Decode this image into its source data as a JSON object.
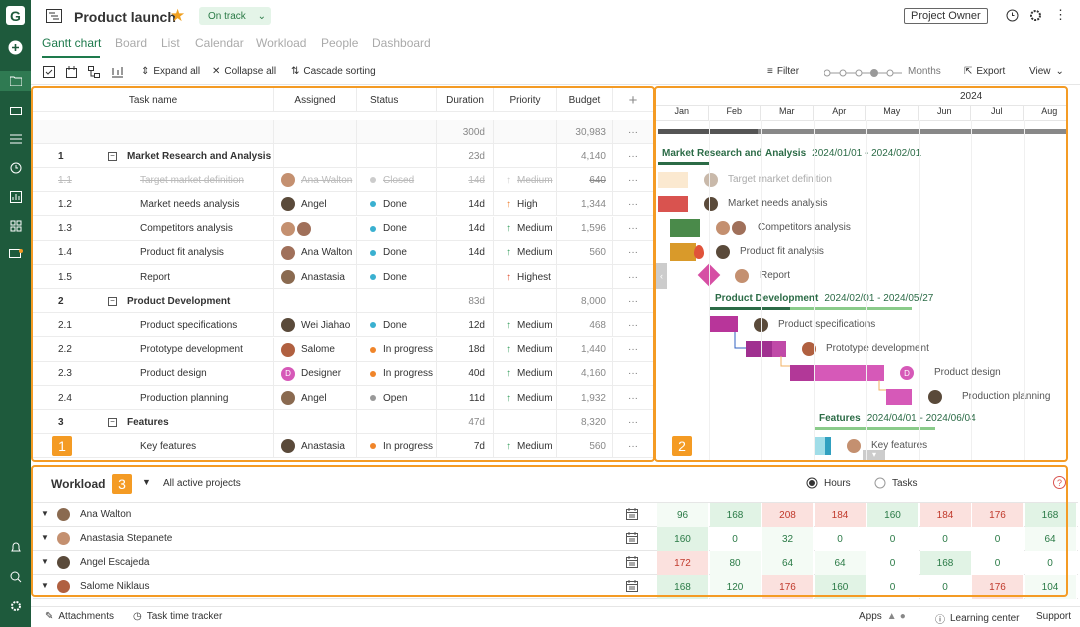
{
  "app": {
    "title": "Product launch",
    "status": "On track",
    "role_button": "Project Owner"
  },
  "tabs": [
    "Gantt chart",
    "Board",
    "List",
    "Calendar",
    "Workload",
    "People",
    "Dashboard"
  ],
  "toolbar": {
    "expand": "Expand all",
    "collapse": "Collapse all",
    "cascade": "Cascade sorting",
    "filter": "Filter",
    "zoom": "Months",
    "export": "Export",
    "view": "View"
  },
  "grid": {
    "headers": [
      "Task name",
      "Assigned",
      "Status",
      "Duration",
      "Priority",
      "Budget"
    ],
    "total": {
      "duration": "300d",
      "budget": "30,983"
    },
    "rows": [
      {
        "id": "1",
        "name": "Market Research and Analysis",
        "group": true,
        "duration": "23d",
        "budget": "4,140"
      },
      {
        "id": "1.1",
        "name": "Target market definition",
        "assigned": "Ana Walton",
        "status": "Closed",
        "duration": "14d",
        "priority": "Medium",
        "budget": "640",
        "dim": true
      },
      {
        "id": "1.2",
        "name": "Market needs analysis",
        "assigned": "Angel",
        "status": "Done",
        "duration": "14d",
        "priority": "High",
        "budget": "1,344"
      },
      {
        "id": "1.3",
        "name": "Competitors analysis",
        "assigned": "",
        "status": "Done",
        "duration": "14d",
        "priority": "Medium",
        "budget": "1,596",
        "two": true
      },
      {
        "id": "1.4",
        "name": "Product fit analysis",
        "assigned": "Ana Walton",
        "status": "Done",
        "duration": "14d",
        "priority": "Medium",
        "budget": "560"
      },
      {
        "id": "1.5",
        "name": "Report",
        "assigned": "Anastasia",
        "status": "Done",
        "duration": "",
        "priority": "Highest",
        "budget": ""
      },
      {
        "id": "2",
        "name": "Product Development",
        "group": true,
        "duration": "83d",
        "budget": "8,000"
      },
      {
        "id": "2.1",
        "name": "Product specifications",
        "assigned": "Wei Jiahao",
        "status": "Done",
        "duration": "12d",
        "priority": "Medium",
        "budget": "468"
      },
      {
        "id": "2.2",
        "name": "Prototype development",
        "assigned": "Salome",
        "status": "In progress",
        "duration": "18d",
        "priority": "Medium",
        "budget": "1,440"
      },
      {
        "id": "2.3",
        "name": "Product design",
        "assigned": "Designer",
        "status": "In progress",
        "duration": "40d",
        "priority": "Medium",
        "budget": "4,160",
        "letter": "D"
      },
      {
        "id": "2.4",
        "name": "Production planning",
        "assigned": "Angel",
        "status": "Open",
        "duration": "11d",
        "priority": "Medium",
        "budget": "1,932"
      },
      {
        "id": "3",
        "name": "Features",
        "group": true,
        "duration": "47d",
        "budget": "8,320"
      },
      {
        "id": "",
        "name": "Key features",
        "assigned": "Anastasia",
        "status": "In progress",
        "duration": "7d",
        "priority": "Medium",
        "budget": "560"
      }
    ]
  },
  "gantt": {
    "year": "2024",
    "months": [
      "Jan",
      "Feb",
      "Mar",
      "Apr",
      "May",
      "Jun",
      "Jul",
      "Aug"
    ],
    "groups": [
      {
        "name": "Market Research and Analysis",
        "dates": "2024/01/01 - 2024/02/01"
      },
      {
        "name": "Product Development",
        "dates": "2024/02/01 - 2024/05/27"
      },
      {
        "name": "Features",
        "dates": "2024/04/01 - 2024/06/04"
      }
    ],
    "labels": [
      "Target market definition",
      "Market needs analysis",
      "Competitors analysis",
      "Product fit analysis",
      "Report",
      "Product specifications",
      "Prototype development",
      "Product design",
      "Production planning",
      "Key features"
    ]
  },
  "workload": {
    "title": "Workload",
    "scope": "All active projects",
    "opt_hours": "Hours",
    "opt_tasks": "Tasks",
    "rows": [
      {
        "name": "Ana Walton",
        "values": [
          "96",
          "168",
          "208",
          "184",
          "160",
          "184",
          "176",
          "168"
        ]
      },
      {
        "name": "Anastasia Stepanete",
        "values": [
          "160",
          "0",
          "32",
          "0",
          "0",
          "0",
          "0",
          "64"
        ]
      },
      {
        "name": "Angel Escajeda",
        "values": [
          "172",
          "80",
          "64",
          "64",
          "0",
          "168",
          "0",
          "0"
        ]
      },
      {
        "name": "Salome Niklaus",
        "values": [
          "168",
          "120",
          "176",
          "160",
          "0",
          "0",
          "176",
          "104"
        ]
      }
    ]
  },
  "badges": [
    "1",
    "2",
    "3"
  ],
  "footer": {
    "attachments": "Attachments",
    "tracker": "Task time tracker",
    "apps": "Apps",
    "learning": "Learning center",
    "support": "Support"
  }
}
